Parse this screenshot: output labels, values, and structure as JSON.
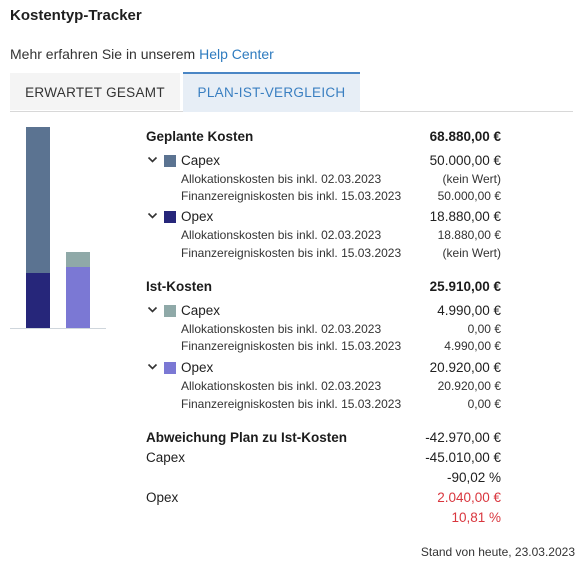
{
  "header": {
    "title": "Kostentyp-Tracker",
    "help_text": "Mehr erfahren Sie in unserem ",
    "help_link": "Help Center"
  },
  "tabs": [
    {
      "label": "ERWARTET GESAMT"
    },
    {
      "label": "PLAN-IST-VERGLEICH"
    }
  ],
  "colors": {
    "capex_plan": "#5b7391",
    "opex_plan": "#26267a",
    "capex_actual": "#8fa9a8",
    "opex_actual": "#7b78d4",
    "negative_red": "#d9363e",
    "accent": "#3a7fc1"
  },
  "plan": {
    "label": "Geplante Kosten",
    "total": "68.880,00 €",
    "capex": {
      "label": "Capex",
      "total": "50.000,00 €",
      "alloc_label": "Allokationskosten bis inkl. 02.03.2023",
      "alloc_value": "(kein Wert)",
      "fin_label": "Finanzereigniskosten bis inkl. 15.03.2023",
      "fin_value": "50.000,00 €"
    },
    "opex": {
      "label": "Opex",
      "total": "18.880,00 €",
      "alloc_label": "Allokationskosten bis inkl. 02.03.2023",
      "alloc_value": "18.880,00 €",
      "fin_label": "Finanzereigniskosten bis inkl. 15.03.2023",
      "fin_value": "(kein Wert)"
    }
  },
  "actual": {
    "label": "Ist-Kosten",
    "total": "25.910,00 €",
    "capex": {
      "label": "Capex",
      "total": "4.990,00 €",
      "alloc_label": "Allokationskosten bis inkl. 02.03.2023",
      "alloc_value": "0,00 €",
      "fin_label": "Finanzereigniskosten bis inkl. 15.03.2023",
      "fin_value": "4.990,00 €"
    },
    "opex": {
      "label": "Opex",
      "total": "20.920,00 €",
      "alloc_label": "Allokationskosten bis inkl. 02.03.2023",
      "alloc_value": "20.920,00 €",
      "fin_label": "Finanzereigniskosten bis inkl. 15.03.2023",
      "fin_value": "0,00 €"
    }
  },
  "deviation": {
    "label": "Abweichung Plan zu Ist-Kosten",
    "total": "-42.970,00 €",
    "capex_label": "Capex",
    "capex_value": "-45.010,00 €",
    "capex_pct": "-90,02 %",
    "opex_label": "Opex",
    "opex_value": "2.040,00 €",
    "opex_pct": "10,81 %"
  },
  "footer": {
    "status": "Stand von heute, 23.03.2023"
  },
  "chart_data": {
    "type": "bar",
    "stacked": true,
    "categories": [
      "Geplante Kosten",
      "Ist-Kosten"
    ],
    "series": [
      {
        "name": "Capex",
        "values": [
          50000,
          4990
        ]
      },
      {
        "name": "Opex",
        "values": [
          18880,
          20920
        ]
      }
    ],
    "title": "",
    "xlabel": "",
    "ylabel": "",
    "ylim": [
      0,
      68880
    ],
    "grid": false,
    "legend": "none"
  }
}
